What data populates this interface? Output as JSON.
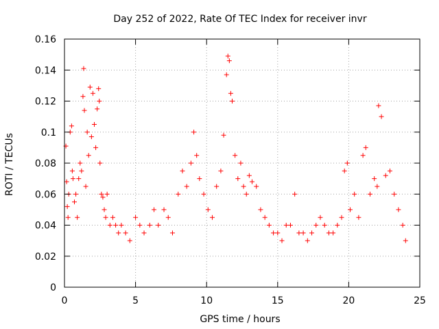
{
  "chart_data": {
    "type": "scatter",
    "title": "Day 252 of 2022, Rate Of TEC Index for receiver invr",
    "xlabel": "GPS time / hours",
    "ylabel": "ROTI / TECUs",
    "xlim": [
      0,
      25
    ],
    "ylim": [
      0,
      0.16
    ],
    "xticks": [
      0,
      5,
      10,
      15,
      20,
      25
    ],
    "xtick_labels": [
      "0",
      "5",
      "10",
      "15",
      "20",
      "25"
    ],
    "yticks": [
      0,
      0.02,
      0.04,
      0.06,
      0.08,
      0.1,
      0.12,
      0.14,
      0.16
    ],
    "ytick_labels": [
      "0",
      "0.02",
      "0.04",
      "0.06",
      "0.08",
      "0.1",
      "0.12",
      "0.14",
      "0.16"
    ],
    "grid": true,
    "legend": "none",
    "marker": "+",
    "marker_color": "#ff0000",
    "series": [
      {
        "x": [
          0.1,
          0.15,
          0.2,
          0.25,
          0.3,
          0.4,
          0.5,
          0.55,
          0.6,
          0.7,
          0.8,
          0.9,
          1.0,
          1.1,
          1.2,
          1.3,
          1.35,
          1.4,
          1.5,
          1.6,
          1.7,
          1.8,
          1.9,
          2.0,
          2.1,
          2.2,
          2.3,
          2.4,
          2.45,
          2.5,
          2.6,
          2.7,
          2.8,
          2.9,
          3.0,
          3.2,
          3.4,
          3.6,
          3.8,
          4.0,
          4.3,
          4.6,
          5.0,
          5.3,
          5.6,
          6.0,
          6.3,
          6.6,
          7.0,
          7.3,
          7.6,
          8.0,
          8.3,
          8.6,
          8.9,
          9.1,
          9.3,
          9.5,
          9.8,
          10.1,
          10.4,
          10.7,
          11.0,
          11.2,
          11.4,
          11.5,
          11.6,
          11.7,
          11.8,
          12.0,
          12.2,
          12.4,
          12.6,
          12.8,
          13.0,
          13.2,
          13.5,
          13.8,
          14.1,
          14.4,
          14.7,
          15.0,
          15.3,
          15.6,
          15.9,
          16.2,
          16.5,
          16.8,
          17.1,
          17.4,
          17.7,
          18.0,
          18.3,
          18.6,
          18.9,
          19.2,
          19.5,
          19.7,
          19.9,
          20.1,
          20.4,
          20.7,
          21.0,
          21.2,
          21.5,
          21.8,
          22.0,
          22.1,
          22.3,
          22.6,
          22.9,
          23.2,
          23.5,
          23.8,
          24.0
        ],
        "y": [
          0.091,
          0.068,
          0.052,
          0.045,
          0.06,
          0.1,
          0.104,
          0.075,
          0.07,
          0.055,
          0.06,
          0.045,
          0.07,
          0.08,
          0.075,
          0.123,
          0.141,
          0.114,
          0.065,
          0.1,
          0.085,
          0.129,
          0.097,
          0.125,
          0.105,
          0.09,
          0.115,
          0.128,
          0.12,
          0.08,
          0.06,
          0.058,
          0.05,
          0.045,
          0.06,
          0.04,
          0.045,
          0.04,
          0.035,
          0.04,
          0.035,
          0.03,
          0.045,
          0.04,
          0.035,
          0.04,
          0.05,
          0.04,
          0.05,
          0.045,
          0.035,
          0.06,
          0.075,
          0.065,
          0.08,
          0.1,
          0.085,
          0.07,
          0.06,
          0.05,
          0.045,
          0.065,
          0.075,
          0.098,
          0.137,
          0.149,
          0.146,
          0.125,
          0.12,
          0.085,
          0.07,
          0.08,
          0.065,
          0.06,
          0.072,
          0.068,
          0.065,
          0.05,
          0.045,
          0.04,
          0.035,
          0.035,
          0.03,
          0.04,
          0.04,
          0.06,
          0.035,
          0.035,
          0.03,
          0.035,
          0.04,
          0.045,
          0.04,
          0.035,
          0.035,
          0.04,
          0.045,
          0.075,
          0.08,
          0.05,
          0.06,
          0.045,
          0.085,
          0.09,
          0.06,
          0.07,
          0.065,
          0.117,
          0.11,
          0.072,
          0.075,
          0.06,
          0.05,
          0.04,
          0.03
        ]
      }
    ]
  }
}
